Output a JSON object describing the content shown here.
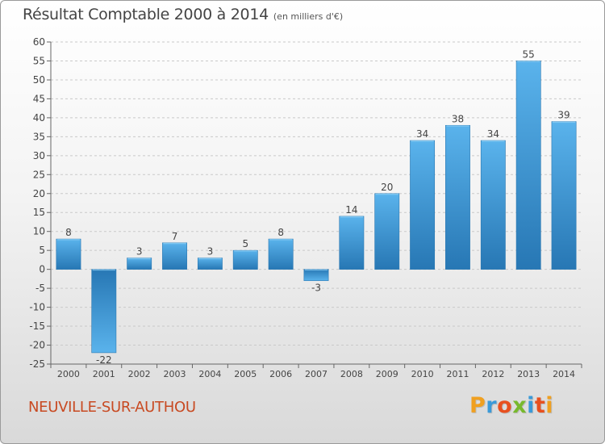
{
  "title": "Résultat Comptable 2000 à 2014",
  "unit": "(en milliers d'€)",
  "commune": "NEUVILLE-SUR-AUTHOU",
  "logo": {
    "letters": [
      "P",
      "r",
      "o",
      "x",
      "i",
      "t",
      "i"
    ],
    "colors": [
      "#f0a020",
      "#3a9ad9",
      "#e8501f",
      "#78b92d",
      "#3a9ad9",
      "#e8501f",
      "#f0a020"
    ]
  },
  "colors": {
    "bar_light": "#5ab3ec",
    "bar_dark": "#2777b4",
    "grid": "#c9c9c9",
    "axis_text": "#444444"
  },
  "chart_data": {
    "type": "bar",
    "categories": [
      "2000",
      "2001",
      "2002",
      "2003",
      "2004",
      "2005",
      "2006",
      "2007",
      "2008",
      "2009",
      "2010",
      "2011",
      "2012",
      "2013",
      "2014"
    ],
    "values": [
      8,
      -22,
      3,
      7,
      3,
      5,
      8,
      -3,
      14,
      20,
      34,
      38,
      34,
      55,
      39
    ],
    "ylim": [
      -25,
      60
    ],
    "yticks": [
      -25,
      -20,
      -15,
      -10,
      -5,
      0,
      5,
      10,
      15,
      20,
      25,
      30,
      35,
      40,
      45,
      50,
      55,
      60
    ],
    "grid": true,
    "legend": "none"
  }
}
